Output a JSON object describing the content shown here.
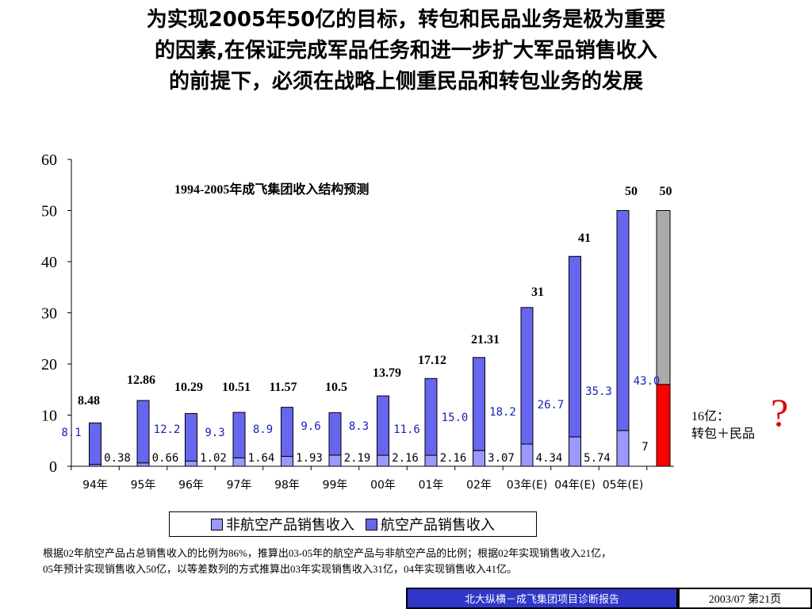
{
  "headline": [
    "为实现2005年50亿的目标，转包和民品业务是极为重要",
    "的因素,在保证完成军品任务和进一步扩大军品销售收入",
    "的前提下，必须在战略上侧重民品和转包业务的发展"
  ],
  "chart_data": {
    "type": "bar",
    "stacked": true,
    "title": "1994-2005年成飞集团收入结构预测",
    "categories": [
      "94年",
      "95年",
      "96年",
      "97年",
      "98年",
      "99年",
      "00年",
      "01年",
      "02年",
      "03年(E)",
      "04年(E)",
      "05年(E)"
    ],
    "series": [
      {
        "name": "非航空产品销售收入",
        "color": "#9999ff",
        "values": [
          0.38,
          0.66,
          1.02,
          1.64,
          1.93,
          2.19,
          2.16,
          2.16,
          3.07,
          4.34,
          5.74,
          7
        ],
        "labels": [
          "0.38",
          "0.66",
          "1.02",
          "1.64",
          "1.93",
          "2.19",
          "2.16",
          "2.16",
          "3.07",
          "4.34",
          "5.74",
          "7"
        ]
      },
      {
        "name": "航空产品销售收入",
        "color": "#6666ee",
        "values": [
          8.1,
          12.2,
          9.3,
          8.9,
          9.6,
          8.3,
          11.6,
          15.0,
          18.2,
          26.7,
          35.3,
          43.0
        ],
        "labels": [
          "8.1",
          "12.2",
          "9.3",
          "8.9",
          "9.6",
          "8.3",
          "11.6",
          "15.0",
          "18.2",
          "26.7",
          "35.3",
          "43.0"
        ]
      }
    ],
    "totals": [
      "8.48",
      "12.86",
      "10.29",
      "10.51",
      "11.57",
      "10.5",
      "13.79",
      "17.12",
      "21.31",
      "31",
      "41",
      "50"
    ],
    "extra_bar": {
      "label": "50",
      "total": 50,
      "bottom_value": 16,
      "bottom_color": "#ff0000",
      "top_color": "#aaaaaa"
    },
    "yticks": [
      0,
      10,
      20,
      30,
      40,
      50,
      60
    ],
    "ylim": [
      0,
      60
    ],
    "xlabel": "",
    "ylabel": "",
    "grid": false,
    "legend": "bottom"
  },
  "legend": {
    "items": [
      {
        "label": "非航空产品销售收入",
        "color": "#9999ff"
      },
      {
        "label": "航空产品销售收入",
        "color": "#6666ee"
      }
    ]
  },
  "side_note": {
    "line1": "16亿：",
    "line2": "转包＋民品",
    "mark": "?"
  },
  "note": {
    "line1": "根据02年航空产品占总销售收入的比例为86%，推算出03-05年的航空产品与非航空产品的比例；根据02年实现销售收入21亿，",
    "line2": "05年预计实现销售收入50亿，以等差数列的方式推算出03年实现销售收入31亿，04年实现销售收入41亿。"
  },
  "footer": {
    "left": "北大纵横－成飞集团项目诊断报告",
    "right": "2003/07  第21页"
  }
}
